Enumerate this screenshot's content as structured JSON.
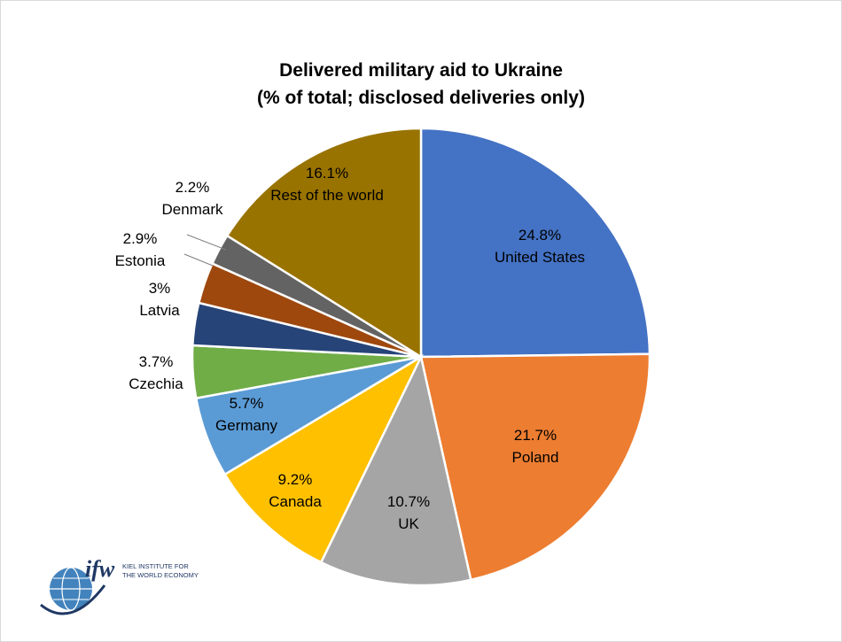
{
  "chart_data": {
    "type": "pie",
    "title": "Delivered military aid to Ukraine",
    "subtitle": "(% of total; disclosed deliveries only)",
    "unit": "%",
    "start_angle_deg": 0,
    "direction": "clockwise",
    "slices": [
      {
        "label": "United States",
        "value": 24.8,
        "value_label": "24.8%",
        "color": "#4472C4",
        "label_color": "#000000"
      },
      {
        "label": "Poland",
        "value": 21.7,
        "value_label": "21.7%",
        "color": "#ED7D31",
        "label_color": "#000000"
      },
      {
        "label": "UK",
        "value": 10.7,
        "value_label": "10.7%",
        "color": "#A5A5A5",
        "label_color": "#000000"
      },
      {
        "label": "Canada",
        "value": 9.2,
        "value_label": "9.2%",
        "color": "#FFC000",
        "label_color": "#000000"
      },
      {
        "label": "Germany",
        "value": 5.7,
        "value_label": "5.7%",
        "color": "#5B9BD5",
        "label_color": "#000000"
      },
      {
        "label": "Czechia",
        "value": 3.7,
        "value_label": "3.7%",
        "color": "#70AD47",
        "label_color": "#000000"
      },
      {
        "label": "Latvia",
        "value": 3,
        "value_label": "3%",
        "color": "#264478",
        "label_color": "#000000"
      },
      {
        "label": "Estonia",
        "value": 2.9,
        "value_label": "2.9%",
        "color": "#9E480E",
        "label_color": "#000000"
      },
      {
        "label": "Denmark",
        "value": 2.2,
        "value_label": "2.2%",
        "color": "#636363",
        "label_color": "#000000"
      },
      {
        "label": "Rest of the world",
        "value": 16.1,
        "value_label": "16.1%",
        "color": "#997300",
        "label_color": "#000000"
      }
    ]
  },
  "logo": {
    "mark": "ifw",
    "line1": "KIEL INSTITUTE FOR",
    "line2": "THE WORLD ECONOMY",
    "globe_icon": "globe-icon",
    "mark_color": "#1F3864",
    "globe_color": "#2E75B6"
  }
}
